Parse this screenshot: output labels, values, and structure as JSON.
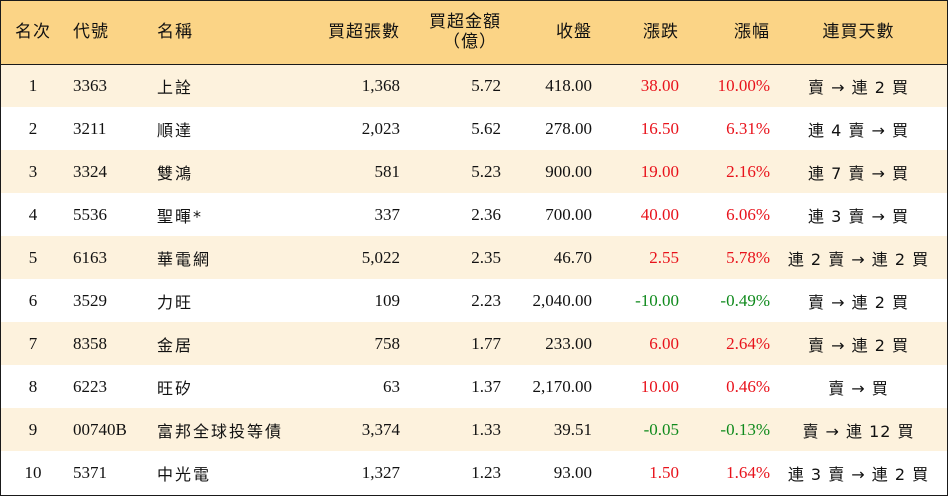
{
  "headers": {
    "rank": "名次",
    "code": "代號",
    "name": "名稱",
    "buy_lots": "買超張數",
    "buy_amount_line1": "買超金額",
    "buy_amount_line2": "（億）",
    "close": "收盤",
    "change": "漲跌",
    "change_pct": "漲幅",
    "streak": "連買天數"
  },
  "rows": [
    {
      "rank": "1",
      "code": "3363",
      "name": "上詮",
      "buy_lots": "1,368",
      "buy_amount": "5.72",
      "close": "418.00",
      "change": "38.00",
      "change_pct": "10.00%",
      "streak": "賣 → 連 2 買",
      "dir": "up"
    },
    {
      "rank": "2",
      "code": "3211",
      "name": "順達",
      "buy_lots": "2,023",
      "buy_amount": "5.62",
      "close": "278.00",
      "change": "16.50",
      "change_pct": "6.31%",
      "streak": "連 4 賣 → 買",
      "dir": "up"
    },
    {
      "rank": "3",
      "code": "3324",
      "name": "雙鴻",
      "buy_lots": "581",
      "buy_amount": "5.23",
      "close": "900.00",
      "change": "19.00",
      "change_pct": "2.16%",
      "streak": "連 7 賣 → 買",
      "dir": "up"
    },
    {
      "rank": "4",
      "code": "5536",
      "name": "聖暉*",
      "buy_lots": "337",
      "buy_amount": "2.36",
      "close": "700.00",
      "change": "40.00",
      "change_pct": "6.06%",
      "streak": "連 3 賣 → 買",
      "dir": "up"
    },
    {
      "rank": "5",
      "code": "6163",
      "name": "華電網",
      "buy_lots": "5,022",
      "buy_amount": "2.35",
      "close": "46.70",
      "change": "2.55",
      "change_pct": "5.78%",
      "streak": "連 2 賣 → 連 2 買",
      "dir": "up"
    },
    {
      "rank": "6",
      "code": "3529",
      "name": "力旺",
      "buy_lots": "109",
      "buy_amount": "2.23",
      "close": "2,040.00",
      "change": "-10.00",
      "change_pct": "-0.49%",
      "streak": "賣 → 連 2 買",
      "dir": "down"
    },
    {
      "rank": "7",
      "code": "8358",
      "name": "金居",
      "buy_lots": "758",
      "buy_amount": "1.77",
      "close": "233.00",
      "change": "6.00",
      "change_pct": "2.64%",
      "streak": "賣 → 連 2 買",
      "dir": "up"
    },
    {
      "rank": "8",
      "code": "6223",
      "name": "旺矽",
      "buy_lots": "63",
      "buy_amount": "1.37",
      "close": "2,170.00",
      "change": "10.00",
      "change_pct": "0.46%",
      "streak": "賣 → 買",
      "dir": "up"
    },
    {
      "rank": "9",
      "code": "00740B",
      "name": "富邦全球投等債",
      "buy_lots": "3,374",
      "buy_amount": "1.33",
      "close": "39.51",
      "change": "-0.05",
      "change_pct": "-0.13%",
      "streak": "賣 → 連 12 買",
      "dir": "down"
    },
    {
      "rank": "10",
      "code": "5371",
      "name": "中光電",
      "buy_lots": "1,327",
      "buy_amount": "1.23",
      "close": "93.00",
      "change": "1.50",
      "change_pct": "1.64%",
      "streak": "連 3 賣 → 連 2 買",
      "dir": "up"
    }
  ],
  "colors": {
    "header_bg": "#fbd486",
    "odd_row_bg": "#fdf2dd",
    "even_row_bg": "#ffffff",
    "up": "#e8121b",
    "down": "#0f8a1c"
  }
}
